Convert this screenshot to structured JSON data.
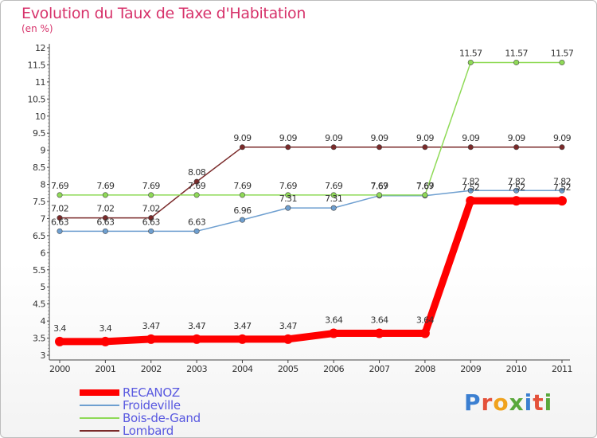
{
  "header": {
    "title": "Evolution du Taux de Taxe d'Habitation",
    "subtitle": "(en %)"
  },
  "logo": {
    "text": "Proxiti",
    "letter_colors": [
      "#3b7fd1",
      "#e4513a",
      "#f0a21d",
      "#5aa83c",
      "#3b7fd1",
      "#e4513a",
      "#5aa83c"
    ]
  },
  "chart_data": {
    "type": "line",
    "title": "Evolution du Taux de Taxe d'Habitation",
    "subtitle": "(en %)",
    "xlabel": "",
    "ylabel": "",
    "categories": [
      "2000",
      "2001",
      "2002",
      "2003",
      "2004",
      "2005",
      "2006",
      "2007",
      "2008",
      "2009",
      "2010",
      "2011"
    ],
    "ylim": [
      3,
      12
    ],
    "yticks": [
      3,
      3.5,
      4,
      4.5,
      5,
      5.5,
      6,
      6.5,
      7,
      7.5,
      8,
      8.5,
      9,
      9.5,
      10,
      10.5,
      11,
      11.5,
      12
    ],
    "ytick_labels": [
      "3",
      "3.5",
      "4",
      "4.5",
      "5",
      "5.5",
      "6",
      "6.5",
      "7",
      "7.5",
      "8",
      "8.5",
      "9",
      "9.5",
      "10",
      "10.5",
      "11",
      "11.5",
      "12"
    ],
    "grid": false,
    "legend_position": "bottom-left",
    "series": [
      {
        "name": "RECANOZ",
        "color": "#ff0000",
        "values": [
          3.4,
          3.4,
          3.47,
          3.47,
          3.47,
          3.47,
          3.64,
          3.64,
          3.64,
          7.52,
          7.52,
          7.52
        ],
        "labels": [
          "3.4",
          "3.4",
          "3.47",
          "3.47",
          "3.47",
          "3.47",
          "3.64",
          "3.64",
          "3.64",
          "7.52",
          "7.52",
          "7.52"
        ]
      },
      {
        "name": "Froideville",
        "color": "#6e9fd0",
        "values": [
          6.63,
          6.63,
          6.63,
          6.63,
          6.96,
          7.31,
          7.31,
          7.67,
          7.67,
          7.82,
          7.82,
          7.82
        ],
        "labels": [
          "6.63",
          "6.63",
          "6.63",
          "6.63",
          "6.96",
          "7.31",
          "7.31",
          "7.67",
          "7.67",
          "7.82",
          "7.82",
          "7.82"
        ]
      },
      {
        "name": "Bois-de-Gand",
        "color": "#8fda57",
        "values": [
          7.69,
          7.69,
          7.69,
          7.69,
          7.69,
          7.69,
          7.69,
          7.69,
          7.69,
          11.57,
          11.57,
          11.57
        ],
        "labels": [
          "7.69",
          "7.69",
          "7.69",
          "7.69",
          "7.69",
          "7.69",
          "7.69",
          "7.69",
          "7.69",
          "11.57",
          "11.57",
          "11.57"
        ]
      },
      {
        "name": "Lombard",
        "color": "#7a2a2a",
        "values": [
          7.02,
          7.02,
          7.02,
          8.08,
          9.09,
          9.09,
          9.09,
          9.09,
          9.09,
          9.09,
          9.09,
          9.09
        ],
        "labels": [
          "7.02",
          "7.02",
          "7.02",
          "8.08",
          "9.09",
          "9.09",
          "9.09",
          "9.09",
          "9.09",
          "9.09",
          "9.09",
          "9.09"
        ]
      }
    ]
  }
}
